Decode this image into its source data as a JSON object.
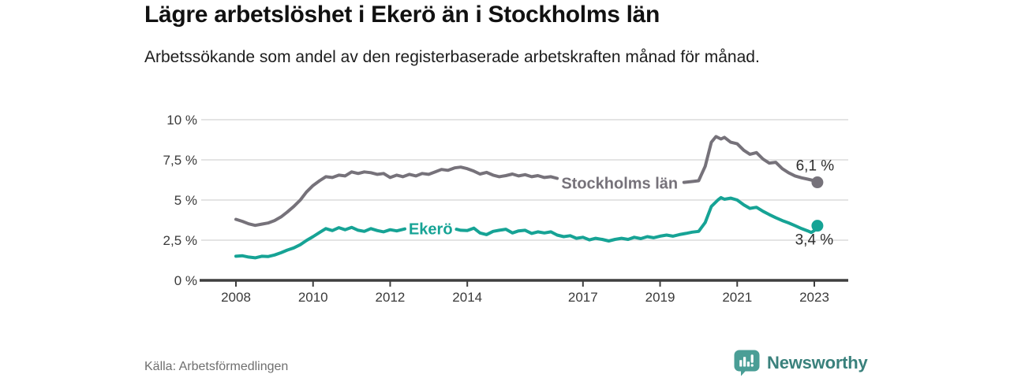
{
  "header": {
    "title": "Lägre arbetslöshet i Ekerö än i Stockholms län",
    "subtitle": "Arbetssökande som andel av den registerbaserade arbetskraften månad för månad."
  },
  "footer": {
    "source": "Källa: Arbetsförmedlingen",
    "brand": "Newsworthy"
  },
  "colors": {
    "stockholm_line": "#76727a",
    "ekero_line": "#16a395",
    "axis": "#3f3f3f",
    "grid": "#dcdcdc",
    "brand_icon_teal": "#4a9e96",
    "brand_text_teal": "#3a817c"
  },
  "chart_data": {
    "type": "line",
    "title": "Lägre arbetslöshet i Ekerö än i Stockholms län",
    "subtitle": "Arbetssökande som andel av den registerbaserade arbetskraften månad för månad.",
    "xlabel": "",
    "ylabel": "",
    "xlim": [
      2007.1,
      2023.9
    ],
    "ylim": [
      0,
      10
    ],
    "grid": true,
    "legend_position": "inline-on-line",
    "x_ticks": [
      2008,
      2010,
      2012,
      2014,
      2017,
      2019,
      2021,
      2023
    ],
    "x_tick_labels": [
      "2008",
      "2010",
      "2012",
      "2014",
      "2017",
      "2019",
      "2021",
      "2023"
    ],
    "y_ticks": [
      0,
      2.5,
      5,
      7.5,
      10
    ],
    "y_tick_labels": [
      "0 %",
      "2,5 %",
      "5 %",
      "7,5 %",
      "10 %"
    ],
    "series": [
      {
        "id": "stockholm",
        "name": "Stockholms län",
        "color": "#76727a",
        "end_value": 6.1,
        "end_label": "6,1 %",
        "end_label_dx": -3,
        "end_label_dy": -15,
        "label_pos": [
          2017.95,
          6.05
        ],
        "segments": [
          [
            [
              2008.0,
              3.8
            ],
            [
              2008.17,
              3.67
            ],
            [
              2008.33,
              3.52
            ],
            [
              2008.5,
              3.42
            ],
            [
              2008.67,
              3.5
            ],
            [
              2008.83,
              3.57
            ],
            [
              2009.0,
              3.72
            ],
            [
              2009.17,
              3.95
            ],
            [
              2009.33,
              4.25
            ],
            [
              2009.5,
              4.6
            ],
            [
              2009.67,
              5.0
            ],
            [
              2009.83,
              5.5
            ],
            [
              2010.0,
              5.9
            ],
            [
              2010.17,
              6.2
            ],
            [
              2010.33,
              6.45
            ],
            [
              2010.5,
              6.4
            ],
            [
              2010.67,
              6.55
            ],
            [
              2010.83,
              6.5
            ],
            [
              2011.0,
              6.75
            ],
            [
              2011.17,
              6.65
            ],
            [
              2011.33,
              6.75
            ],
            [
              2011.5,
              6.7
            ],
            [
              2011.67,
              6.6
            ],
            [
              2011.83,
              6.65
            ],
            [
              2012.0,
              6.4
            ],
            [
              2012.17,
              6.55
            ],
            [
              2012.33,
              6.45
            ],
            [
              2012.5,
              6.6
            ],
            [
              2012.67,
              6.5
            ],
            [
              2012.83,
              6.65
            ],
            [
              2013.0,
              6.6
            ],
            [
              2013.17,
              6.75
            ],
            [
              2013.33,
              6.9
            ],
            [
              2013.5,
              6.85
            ],
            [
              2013.67,
              7.0
            ],
            [
              2013.83,
              7.05
            ],
            [
              2014.0,
              6.95
            ],
            [
              2014.17,
              6.8
            ],
            [
              2014.33,
              6.62
            ],
            [
              2014.5,
              6.72
            ],
            [
              2014.67,
              6.55
            ],
            [
              2014.83,
              6.45
            ],
            [
              2015.0,
              6.52
            ],
            [
              2015.17,
              6.62
            ],
            [
              2015.33,
              6.5
            ],
            [
              2015.5,
              6.58
            ],
            [
              2015.67,
              6.45
            ],
            [
              2015.83,
              6.52
            ],
            [
              2016.0,
              6.4
            ],
            [
              2016.17,
              6.45
            ],
            [
              2016.33,
              6.35
            ]
          ],
          [
            [
              2019.62,
              6.1
            ],
            [
              2019.83,
              6.15
            ],
            [
              2020.0,
              6.2
            ],
            [
              2020.17,
              7.1
            ],
            [
              2020.33,
              8.6
            ],
            [
              2020.45,
              8.95
            ],
            [
              2020.58,
              8.8
            ],
            [
              2020.67,
              8.9
            ],
            [
              2020.83,
              8.6
            ],
            [
              2021.0,
              8.5
            ],
            [
              2021.17,
              8.1
            ],
            [
              2021.33,
              7.85
            ],
            [
              2021.5,
              7.95
            ],
            [
              2021.67,
              7.55
            ],
            [
              2021.83,
              7.3
            ],
            [
              2022.0,
              7.35
            ],
            [
              2022.17,
              6.95
            ],
            [
              2022.33,
              6.7
            ],
            [
              2022.5,
              6.5
            ],
            [
              2022.67,
              6.38
            ],
            [
              2022.83,
              6.3
            ],
            [
              2023.0,
              6.2
            ],
            [
              2023.08,
              6.1
            ]
          ]
        ]
      },
      {
        "id": "ekero",
        "name": "Ekerö",
        "color": "#16a395",
        "end_value": 3.4,
        "end_label": "3,4 %",
        "end_label_dx": -4,
        "end_label_dy": 24,
        "label_pos": [
          2013.05,
          3.22
        ],
        "segments": [
          [
            [
              2008.0,
              1.5
            ],
            [
              2008.17,
              1.53
            ],
            [
              2008.33,
              1.45
            ],
            [
              2008.5,
              1.4
            ],
            [
              2008.67,
              1.5
            ],
            [
              2008.83,
              1.48
            ],
            [
              2009.0,
              1.58
            ],
            [
              2009.17,
              1.72
            ],
            [
              2009.33,
              1.88
            ],
            [
              2009.5,
              2.02
            ],
            [
              2009.67,
              2.22
            ],
            [
              2009.83,
              2.48
            ],
            [
              2010.0,
              2.72
            ],
            [
              2010.17,
              2.98
            ],
            [
              2010.33,
              3.22
            ],
            [
              2010.5,
              3.1
            ],
            [
              2010.67,
              3.28
            ],
            [
              2010.83,
              3.15
            ],
            [
              2011.0,
              3.3
            ],
            [
              2011.17,
              3.12
            ],
            [
              2011.33,
              3.05
            ],
            [
              2011.5,
              3.22
            ],
            [
              2011.67,
              3.1
            ],
            [
              2011.83,
              3.02
            ],
            [
              2012.0,
              3.15
            ],
            [
              2012.17,
              3.08
            ],
            [
              2012.38,
              3.2
            ]
          ],
          [
            [
              2013.72,
              3.18
            ],
            [
              2013.83,
              3.12
            ],
            [
              2014.0,
              3.1
            ],
            [
              2014.17,
              3.25
            ],
            [
              2014.33,
              2.95
            ],
            [
              2014.5,
              2.85
            ],
            [
              2014.67,
              3.05
            ],
            [
              2014.83,
              3.12
            ],
            [
              2015.0,
              3.18
            ],
            [
              2015.17,
              2.95
            ],
            [
              2015.33,
              3.08
            ],
            [
              2015.5,
              3.12
            ],
            [
              2015.67,
              2.92
            ],
            [
              2015.83,
              3.02
            ],
            [
              2016.0,
              2.95
            ],
            [
              2016.17,
              3.02
            ],
            [
              2016.33,
              2.82
            ],
            [
              2016.5,
              2.72
            ],
            [
              2016.67,
              2.78
            ],
            [
              2016.83,
              2.62
            ],
            [
              2017.0,
              2.68
            ],
            [
              2017.17,
              2.52
            ],
            [
              2017.33,
              2.62
            ],
            [
              2017.5,
              2.55
            ],
            [
              2017.67,
              2.45
            ],
            [
              2017.83,
              2.55
            ],
            [
              2018.0,
              2.62
            ],
            [
              2018.17,
              2.55
            ],
            [
              2018.33,
              2.68
            ],
            [
              2018.5,
              2.6
            ],
            [
              2018.67,
              2.72
            ],
            [
              2018.83,
              2.65
            ],
            [
              2019.0,
              2.75
            ],
            [
              2019.17,
              2.82
            ],
            [
              2019.33,
              2.75
            ],
            [
              2019.5,
              2.85
            ],
            [
              2019.67,
              2.92
            ],
            [
              2019.83,
              3.0
            ],
            [
              2020.0,
              3.05
            ],
            [
              2020.17,
              3.6
            ],
            [
              2020.33,
              4.6
            ],
            [
              2020.5,
              5.0
            ],
            [
              2020.58,
              5.15
            ],
            [
              2020.67,
              5.05
            ],
            [
              2020.83,
              5.12
            ],
            [
              2021.0,
              5.0
            ],
            [
              2021.17,
              4.7
            ],
            [
              2021.33,
              4.48
            ],
            [
              2021.5,
              4.55
            ],
            [
              2021.67,
              4.3
            ],
            [
              2021.83,
              4.1
            ],
            [
              2022.0,
              3.9
            ],
            [
              2022.17,
              3.72
            ],
            [
              2022.33,
              3.58
            ],
            [
              2022.5,
              3.4
            ],
            [
              2022.67,
              3.22
            ],
            [
              2022.83,
              3.08
            ],
            [
              2022.92,
              2.98
            ],
            [
              2023.0,
              3.1
            ],
            [
              2023.08,
              3.4
            ]
          ]
        ]
      }
    ]
  }
}
